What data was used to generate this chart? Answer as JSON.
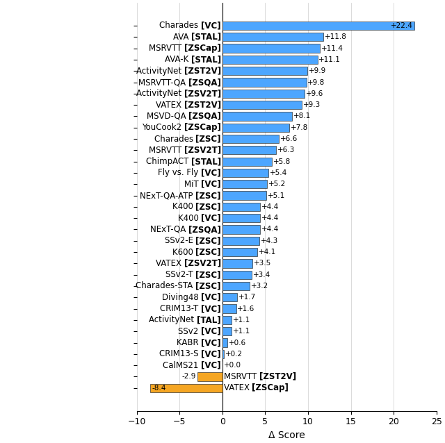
{
  "bars": [
    {
      "label_plain": "Charades ",
      "label_bold": "[VC]",
      "value": 22.4,
      "color": "#4da6ff",
      "text": "+22.4",
      "text_inside": true
    },
    {
      "label_plain": "AVA ",
      "label_bold": "[STAL]",
      "value": 11.8,
      "color": "#4da6ff",
      "text": "+11.8",
      "text_inside": false
    },
    {
      "label_plain": "MSRVTT ",
      "label_bold": "[ZSCap]",
      "value": 11.4,
      "color": "#4da6ff",
      "text": "+11.4",
      "text_inside": false
    },
    {
      "label_plain": "AVA-K ",
      "label_bold": "[STAL]",
      "value": 11.1,
      "color": "#4da6ff",
      "text": "+11.1",
      "text_inside": false
    },
    {
      "label_plain": "ActivityNet ",
      "label_bold": "[ZST2V]",
      "value": 9.9,
      "color": "#4da6ff",
      "text": "+9.9",
      "text_inside": false
    },
    {
      "label_plain": "MSRVTT-QA ",
      "label_bold": "[ZSQA]",
      "value": 9.8,
      "color": "#4da6ff",
      "text": "+9.8",
      "text_inside": false
    },
    {
      "label_plain": "ActivityNet ",
      "label_bold": "[ZSV2T]",
      "value": 9.6,
      "color": "#4da6ff",
      "text": "+9.6",
      "text_inside": false
    },
    {
      "label_plain": "VATEX ",
      "label_bold": "[ZST2V]",
      "value": 9.3,
      "color": "#4da6ff",
      "text": "+9.3",
      "text_inside": false
    },
    {
      "label_plain": "MSVD-QA ",
      "label_bold": "[ZSQA]",
      "value": 8.1,
      "color": "#4da6ff",
      "text": "+8.1",
      "text_inside": false
    },
    {
      "label_plain": "YouCook2 ",
      "label_bold": "[ZSCap]",
      "value": 7.8,
      "color": "#4da6ff",
      "text": "+7.8",
      "text_inside": false
    },
    {
      "label_plain": "Charades ",
      "label_bold": "[ZSC]",
      "value": 6.6,
      "color": "#4da6ff",
      "text": "+6.6",
      "text_inside": false
    },
    {
      "label_plain": "MSRVTT ",
      "label_bold": "[ZSV2T]",
      "value": 6.3,
      "color": "#4da6ff",
      "text": "+6.3",
      "text_inside": false
    },
    {
      "label_plain": "ChimpACT ",
      "label_bold": "[STAL]",
      "value": 5.8,
      "color": "#4da6ff",
      "text": "+5.8",
      "text_inside": false
    },
    {
      "label_plain": "Fly vs. Fly ",
      "label_bold": "[VC]",
      "value": 5.4,
      "color": "#4da6ff",
      "text": "+5.4",
      "text_inside": false
    },
    {
      "label_plain": "MiT ",
      "label_bold": "[VC]",
      "value": 5.2,
      "color": "#4da6ff",
      "text": "+5.2",
      "text_inside": false
    },
    {
      "label_plain": "NExT-QA-ATP ",
      "label_bold": "[ZSC]",
      "value": 5.1,
      "color": "#4da6ff",
      "text": "+5.1",
      "text_inside": false
    },
    {
      "label_plain": "K400 ",
      "label_bold": "[ZSC]",
      "value": 4.4,
      "color": "#4da6ff",
      "text": "+4.4",
      "text_inside": false
    },
    {
      "label_plain": "K400 ",
      "label_bold": "[VC]",
      "value": 4.4,
      "color": "#4da6ff",
      "text": "+4.4",
      "text_inside": false
    },
    {
      "label_plain": "NExT-QA ",
      "label_bold": "[ZSQA]",
      "value": 4.4,
      "color": "#4da6ff",
      "text": "+4.4",
      "text_inside": false
    },
    {
      "label_plain": "SSv2-E ",
      "label_bold": "[ZSC]",
      "value": 4.3,
      "color": "#4da6ff",
      "text": "+4.3",
      "text_inside": false
    },
    {
      "label_plain": "K600 ",
      "label_bold": "[ZSC]",
      "value": 4.1,
      "color": "#4da6ff",
      "text": "+4.1",
      "text_inside": false
    },
    {
      "label_plain": "VATEX ",
      "label_bold": "[ZSV2T]",
      "value": 3.5,
      "color": "#4da6ff",
      "text": "+3.5",
      "text_inside": false
    },
    {
      "label_plain": "SSv2-T ",
      "label_bold": "[ZSC]",
      "value": 3.4,
      "color": "#4da6ff",
      "text": "+3.4",
      "text_inside": false
    },
    {
      "label_plain": "Charades-STA ",
      "label_bold": "[ZSC]",
      "value": 3.2,
      "color": "#4da6ff",
      "text": "+3.2",
      "text_inside": false
    },
    {
      "label_plain": "Diving48 ",
      "label_bold": "[VC]",
      "value": 1.7,
      "color": "#4da6ff",
      "text": "+1.7",
      "text_inside": false
    },
    {
      "label_plain": "CRIM13-T ",
      "label_bold": "[VC]",
      "value": 1.6,
      "color": "#4da6ff",
      "text": "+1.6",
      "text_inside": false
    },
    {
      "label_plain": "ActivityNet ",
      "label_bold": "[TAL]",
      "value": 1.1,
      "color": "#4da6ff",
      "text": "+1.1",
      "text_inside": false
    },
    {
      "label_plain": "SSv2 ",
      "label_bold": "[VC]",
      "value": 1.1,
      "color": "#4da6ff",
      "text": "+1.1",
      "text_inside": false
    },
    {
      "label_plain": "KABR ",
      "label_bold": "[VC]",
      "value": 0.6,
      "color": "#4da6ff",
      "text": "+0.6",
      "text_inside": false
    },
    {
      "label_plain": "CRIM13-S ",
      "label_bold": "[VC]",
      "value": 0.2,
      "color": "#4da6ff",
      "text": "+0.2",
      "text_inside": false
    },
    {
      "label_plain": "CalMS21 ",
      "label_bold": "[VC]",
      "value": 0.0,
      "color": "#4da6ff",
      "text": "+0.0",
      "text_inside": false
    },
    {
      "label_plain": "MSRVTT ",
      "label_bold": "[ZST2V]",
      "value": -2.9,
      "color": "#f5a623",
      "text": "-2.9",
      "text_inside": false
    },
    {
      "label_plain": "VATEX ",
      "label_bold": "[ZSCap]",
      "value": -8.4,
      "color": "#f5a623",
      "text": "-8.4",
      "text_inside": true
    }
  ],
  "xlabel": "Δ Score",
  "xlim": [
    -10,
    25
  ],
  "xticks": [
    -10,
    -5,
    0,
    5,
    10,
    15,
    20,
    25
  ],
  "bar_height": 0.75,
  "figsize": [
    6.4,
    6.38
  ],
  "dpi": 100,
  "label_fontsize": 8.5,
  "value_fontsize": 7.5
}
